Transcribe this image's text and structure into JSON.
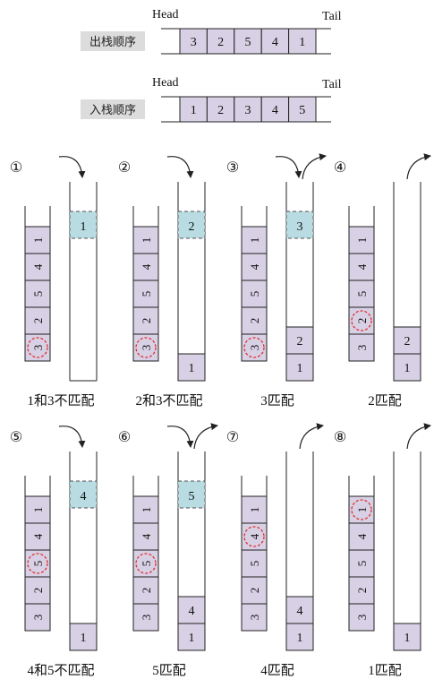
{
  "queues": [
    {
      "label": "出栈顺序",
      "head": "Head",
      "tail": "Tail",
      "values": [
        "3",
        "2",
        "5",
        "4",
        "1"
      ]
    },
    {
      "label": "入栈顺序",
      "head": "Head",
      "tail": "Tail",
      "values": [
        "1",
        "2",
        "3",
        "4",
        "5"
      ]
    }
  ],
  "steps": [
    {
      "number": "①",
      "caption": "1和3不匹配",
      "column_a": [
        "1",
        "4",
        "5",
        "2",
        "3"
      ],
      "circled": "3",
      "column_b": [],
      "pending": "1",
      "arrow_in": true,
      "arrow_out": false
    },
    {
      "number": "②",
      "caption": "2和3不匹配",
      "column_a": [
        "1",
        "4",
        "5",
        "2",
        "3"
      ],
      "circled": "3",
      "column_b": [
        "1"
      ],
      "pending": "2",
      "arrow_in": true,
      "arrow_out": false
    },
    {
      "number": "③",
      "caption": "3匹配",
      "column_a": [
        "1",
        "4",
        "5",
        "2",
        "3"
      ],
      "circled": "3",
      "column_b": [
        "2",
        "1"
      ],
      "pending": "3",
      "arrow_in": true,
      "arrow_out": true
    },
    {
      "number": "④",
      "caption": "2匹配",
      "column_a": [
        "1",
        "4",
        "5",
        "2",
        "3"
      ],
      "circled": "2",
      "column_b": [
        "2",
        "1"
      ],
      "pending": "",
      "arrow_in": false,
      "arrow_out": true
    },
    {
      "number": "⑤",
      "caption": "4和5不匹配",
      "column_a": [
        "1",
        "4",
        "5",
        "2",
        "3"
      ],
      "circled": "5",
      "column_b": [
        "1"
      ],
      "pending": "4",
      "arrow_in": true,
      "arrow_out": false
    },
    {
      "number": "⑥",
      "caption": "5匹配",
      "column_a": [
        "1",
        "4",
        "5",
        "2",
        "3"
      ],
      "circled": "5",
      "column_b": [
        "4",
        "1"
      ],
      "pending": "5",
      "arrow_in": true,
      "arrow_out": true
    },
    {
      "number": "⑦",
      "caption": "4匹配",
      "column_a": [
        "1",
        "4",
        "5",
        "2",
        "3"
      ],
      "circled": "4",
      "column_b": [
        "4",
        "1"
      ],
      "pending": "",
      "arrow_in": false,
      "arrow_out": true
    },
    {
      "number": "⑧",
      "caption": "1匹配",
      "column_a": [
        "1",
        "4",
        "5",
        "2",
        "3"
      ],
      "circled": "1",
      "column_b": [
        "1"
      ],
      "pending": "",
      "arrow_in": false,
      "arrow_out": true
    }
  ],
  "colors": {
    "cell": "#d8d0e4",
    "pending": "#b9dbe2",
    "label_bg": "#dcdcdc",
    "circle": "#e03030",
    "line": "#222222"
  }
}
